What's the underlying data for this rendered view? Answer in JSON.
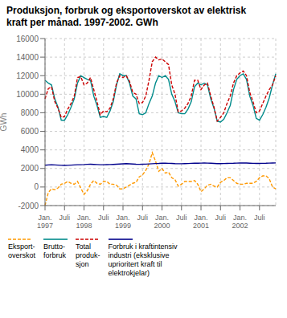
{
  "chart_data": {
    "type": "line",
    "title": "Produksjon, forbruk og eksportoverskot av elektrisk\nkraft per månad. 1997-2002. GWh",
    "y_label": "GWh",
    "categories": [
      "Jan.\n1997",
      null,
      null,
      null,
      null,
      null,
      "Juli",
      null,
      null,
      null,
      null,
      null,
      "Jan.\n1998",
      null,
      null,
      null,
      null,
      null,
      "Juli",
      null,
      null,
      null,
      null,
      null,
      "Jan.\n1999",
      null,
      null,
      null,
      null,
      null,
      "Juli",
      null,
      null,
      null,
      null,
      null,
      "Jan.\n2000",
      null,
      null,
      null,
      null,
      null,
      "Juli",
      null,
      null,
      null,
      null,
      null,
      "Jan.\n2001",
      null,
      null,
      null,
      null,
      null,
      "Juli",
      null,
      null,
      null,
      null,
      null,
      "Jan.\n2002",
      null,
      null,
      null,
      null,
      null,
      "Juli",
      null,
      null,
      null,
      null,
      null
    ],
    "series": [
      {
        "name": "Eksport-\noverskot",
        "color": "#ff9900",
        "line_style": "dashed",
        "values": [
          -2000,
          -600,
          -200,
          -300,
          -100,
          300,
          400,
          600,
          400,
          300,
          600,
          -100,
          -800,
          -400,
          300,
          700,
          400,
          300,
          600,
          600,
          300,
          300,
          200,
          -200,
          -200,
          0,
          200,
          400,
          500,
          1100,
          1300,
          1800,
          2500,
          3700,
          2800,
          1700,
          2000,
          1500,
          1600,
          1000,
          800,
          100,
          300,
          600,
          600,
          600,
          700,
          300,
          -500,
          -200,
          200,
          300,
          100,
          0,
          500,
          700,
          1000,
          1000,
          700,
          400,
          300,
          300,
          400,
          400,
          400,
          600,
          1000,
          1200,
          1200,
          900,
          0,
          -200
        ]
      },
      {
        "name": "Brutto-\nforbruk",
        "color": "#008b8b",
        "line_style": "solid",
        "values": [
          11500,
          11200,
          11000,
          9500,
          8600,
          7200,
          7200,
          7800,
          8600,
          9500,
          11200,
          12000,
          11800,
          11600,
          11500,
          9800,
          8800,
          7500,
          7600,
          7500,
          8200,
          9200,
          11000,
          12200,
          12000,
          12000,
          11200,
          9800,
          9500,
          7900,
          7800,
          8000,
          9000,
          9800,
          11200,
          12000,
          11800,
          12000,
          11600,
          10000,
          9200,
          8000,
          7900,
          7900,
          8400,
          9200,
          10800,
          11200,
          11000,
          11200,
          11000,
          9500,
          8500,
          7100,
          7000,
          7300,
          8000,
          8800,
          10500,
          11600,
          12000,
          12200,
          11600,
          9800,
          8800,
          7400,
          7200,
          7800,
          8600,
          9600,
          11000,
          12200
        ]
      },
      {
        "name": "Total\nproduk-\nsjon",
        "color": "#cc0000",
        "line_style": "dashed",
        "values": [
          9500,
          10600,
          10800,
          9200,
          8500,
          7500,
          7600,
          8400,
          9000,
          9800,
          11800,
          11900,
          11000,
          11200,
          11800,
          10500,
          9200,
          7800,
          8200,
          8100,
          8500,
          9500,
          11200,
          12000,
          11800,
          12000,
          11400,
          10200,
          10000,
          9000,
          9100,
          9800,
          11500,
          13500,
          14000,
          13700,
          13800,
          13500,
          13200,
          11000,
          10000,
          8100,
          8200,
          8500,
          9000,
          9800,
          11500,
          11500,
          10500,
          11000,
          11200,
          9800,
          8600,
          7100,
          7500,
          8000,
          9000,
          9800,
          11200,
          12000,
          12300,
          12500,
          12000,
          10200,
          9200,
          8000,
          8200,
          9000,
          9800,
          10500,
          11000,
          12000
        ]
      },
      {
        "name": "Forbruk i kraftintensiv\nindustri (eksklusive\nuprioritert kraft til\nelektrokjelar)",
        "color": "#00008b",
        "line_style": "solid",
        "values": [
          2350,
          2380,
          2400,
          2380,
          2360,
          2340,
          2330,
          2340,
          2360,
          2380,
          2400,
          2400,
          2420,
          2450,
          2460,
          2440,
          2420,
          2400,
          2400,
          2410,
          2420,
          2440,
          2460,
          2480,
          2500,
          2520,
          2500,
          2480,
          2460,
          2450,
          2460,
          2470,
          2490,
          2510,
          2530,
          2540,
          2560,
          2560,
          2550,
          2540,
          2520,
          2510,
          2510,
          2520,
          2530,
          2550,
          2560,
          2570,
          2580,
          2590,
          2580,
          2560,
          2540,
          2520,
          2520,
          2530,
          2540,
          2550,
          2560,
          2580,
          2590,
          2600,
          2590,
          2570,
          2550,
          2540,
          2540,
          2550,
          2560,
          2580,
          2590,
          2600
        ]
      }
    ],
    "ylim": [
      -2000,
      16000
    ],
    "yticks": [
      -2000,
      0,
      2000,
      4000,
      6000,
      8000,
      10000,
      12000,
      14000,
      16000
    ],
    "grid": true,
    "legend": "bottom"
  }
}
